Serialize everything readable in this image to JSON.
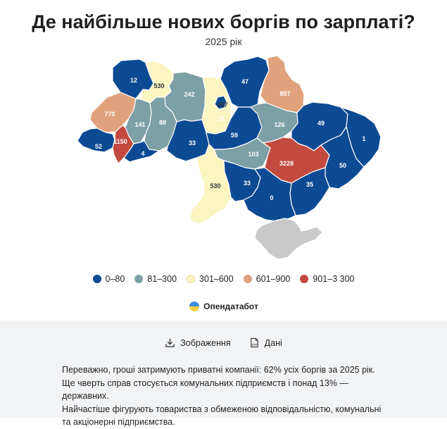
{
  "title": "Де найбільше нових боргів по зарплаті?",
  "subtitle": "2025 рік",
  "colors": {
    "c0": "#0d4a94",
    "c1": "#7d9fa6",
    "c2": "#fbf5c2",
    "c3": "#e0a27c",
    "c4": "#c24a3e",
    "nodata": "#c9c9c9"
  },
  "legend": [
    {
      "label": "0–80",
      "color": "#0d4a94"
    },
    {
      "label": "81–300",
      "color": "#7d9fa6"
    },
    {
      "label": "301–600",
      "color": "#fbf5c2"
    },
    {
      "label": "601–900",
      "color": "#e0a27c"
    },
    {
      "label": "901–3 300",
      "color": "#c24a3e"
    }
  ],
  "regions": [
    {
      "name": "Волинська",
      "value": "12",
      "bin": "c0"
    },
    {
      "name": "Рівненська",
      "value": "530",
      "bin": "c2"
    },
    {
      "name": "Житомирська",
      "value": "242",
      "bin": "c1"
    },
    {
      "name": "Київська",
      "value": "437",
      "bin": "c2"
    },
    {
      "name": "Чернігівська",
      "value": "47",
      "bin": "c0"
    },
    {
      "name": "Сумська",
      "value": "897",
      "bin": "c3"
    },
    {
      "name": "Львівська",
      "value": "770",
      "bin": "c3"
    },
    {
      "name": "Тернопільська",
      "value": "141",
      "bin": "c1"
    },
    {
      "name": "Хмельницька",
      "value": "88",
      "bin": "c1"
    },
    {
      "name": "Вінницька",
      "value": "33",
      "bin": "c0"
    },
    {
      "name": "м. Київ",
      "value": "73",
      "bin": "c0"
    },
    {
      "name": "Черкаська",
      "value": "59",
      "bin": "c0"
    },
    {
      "name": "Полтавська",
      "value": "126",
      "bin": "c1"
    },
    {
      "name": "Харківська",
      "value": "49",
      "bin": "c0"
    },
    {
      "name": "Луганська",
      "value": "1",
      "bin": "c0"
    },
    {
      "name": "Закарпатська",
      "value": "52",
      "bin": "c0"
    },
    {
      "name": "Івано-Франківська",
      "value": "1150",
      "bin": "c4"
    },
    {
      "name": "Чернівецька",
      "value": "4",
      "bin": "c0"
    },
    {
      "name": "Кіровоградська",
      "value": "103",
      "bin": "c1"
    },
    {
      "name": "Дніпропетровська",
      "value": "3228",
      "bin": "c4"
    },
    {
      "name": "Донецька",
      "value": "50",
      "bin": "c0"
    },
    {
      "name": "Одеська",
      "value": "530",
      "bin": "c2"
    },
    {
      "name": "Миколаївська",
      "value": "33",
      "bin": "c0"
    },
    {
      "name": "Запорізька",
      "value": "35",
      "bin": "c0"
    },
    {
      "name": "Херсонська",
      "value": "0",
      "bin": "c0"
    },
    {
      "name": "Крим",
      "value": "",
      "bin": "nodata"
    }
  ],
  "brand": {
    "name": "Опендатабот",
    "icon": "opendatabot-logo-icon"
  },
  "actions": [
    {
      "label": "Зображення",
      "icon": "download-icon"
    },
    {
      "label": "Дані",
      "icon": "csv-file-icon"
    }
  ],
  "note": [
    "Переважно, гроші затримують приватні компанії: 62% усіх боргів за 2025 рік.",
    "Ще чверть справ стосується комунальних підприємств і понад 13% — державних.",
    "Найчастіше фігурують товариства з обмеженою відповідальністю, комунальні",
    "та акціонерні підприємства."
  ]
}
